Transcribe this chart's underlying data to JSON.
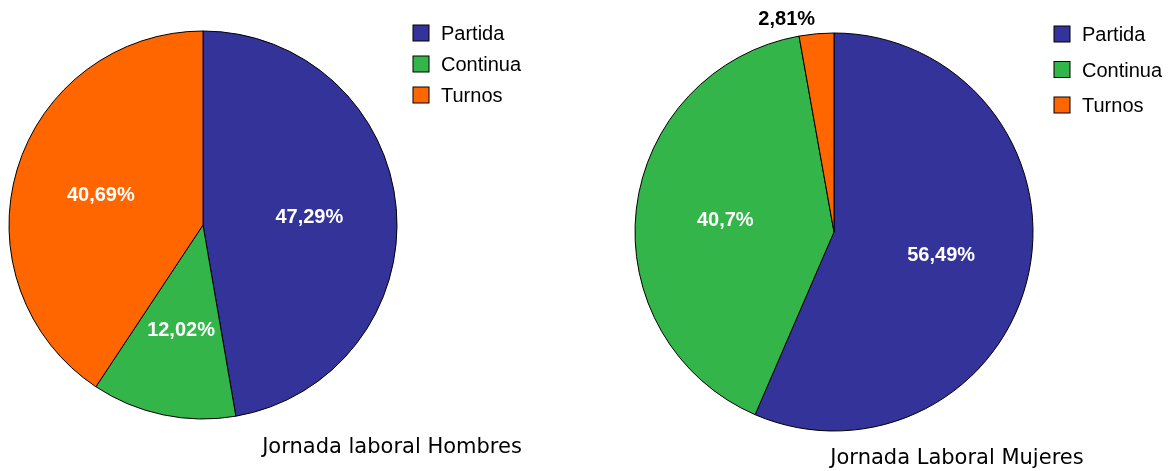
{
  "chart_data": [
    {
      "type": "pie",
      "title": "Jornada laboral Hombres",
      "categories": [
        "Partida",
        "Continua",
        "Turnos"
      ],
      "values": [
        47.29,
        12.02,
        40.69
      ],
      "colors": [
        "#333399",
        "#33b54a",
        "#ff6600"
      ],
      "value_labels": [
        "47,29%",
        "12,02%",
        "40,69%"
      ],
      "legend": "top right"
    },
    {
      "type": "pie",
      "title": "Jornada Laboral Mujeres",
      "categories": [
        "Partida",
        "Continua",
        "Turnos"
      ],
      "values": [
        56.49,
        40.7,
        2.81
      ],
      "colors": [
        "#333399",
        "#33b54a",
        "#ff6600"
      ],
      "value_labels": [
        "56,49%",
        "40,7%",
        "2,81%"
      ],
      "legend": "top right"
    }
  ]
}
